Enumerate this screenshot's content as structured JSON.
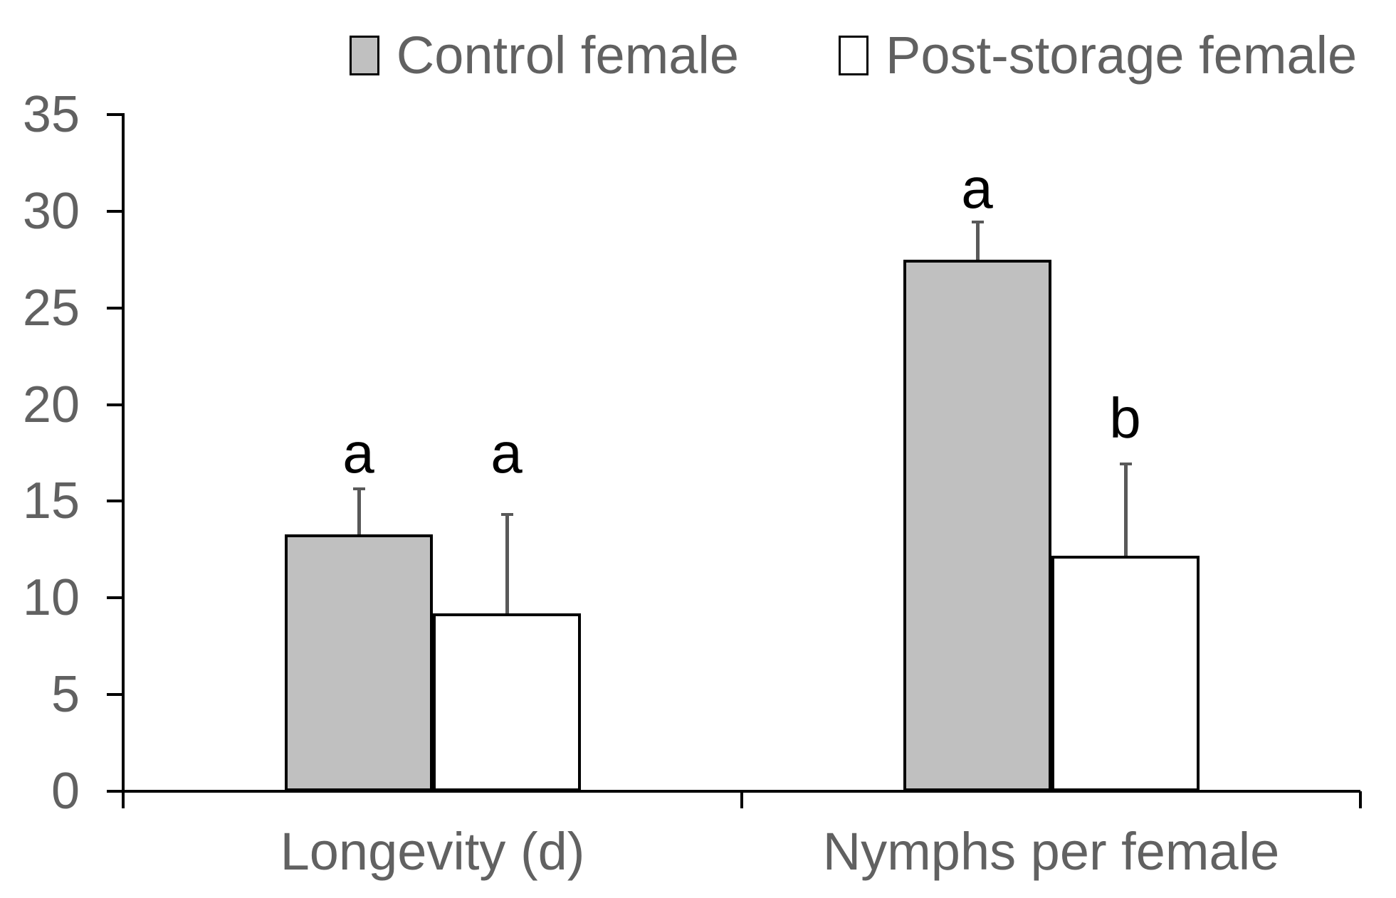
{
  "legend": {
    "items": [
      {
        "label": "Control female",
        "swatch_color": "#c0c0c0"
      },
      {
        "label": "Post-storage female",
        "swatch_color": "#ffffff"
      }
    ]
  },
  "axis": {
    "yticks": [
      "0",
      "5",
      "10",
      "15",
      "20",
      "25",
      "30",
      "35"
    ]
  },
  "colors": {
    "bar_gray_fill": "#c0c0c0",
    "bar_white_fill": "#ffffff",
    "bar_border": "#000000",
    "error_bar": "#595959",
    "axis": "#000000",
    "text_gray": "#616161",
    "significance_letter": "#000000"
  },
  "chart_data": {
    "type": "bar",
    "title": "",
    "xlabel": "",
    "ylabel": "",
    "categories": [
      "Longevity (d)",
      "Nymphs per female"
    ],
    "series": [
      {
        "name": "Control female",
        "fill": "#c0c0c0",
        "values": [
          13.3,
          27.5
        ],
        "error_upper": [
          2.4,
          2.0
        ],
        "sig_letters": [
          "a",
          "a"
        ],
        "letter_heights": [
          16.6,
          30.3
        ]
      },
      {
        "name": "Post-storage female",
        "fill": "#ffffff",
        "values": [
          9.2,
          12.2
        ],
        "error_upper": [
          5.2,
          4.8
        ],
        "sig_letters": [
          "a",
          "b"
        ],
        "letter_heights": [
          16.6,
          18.4
        ]
      }
    ],
    "ylim": [
      0,
      35
    ],
    "ytick_step": 5,
    "grid": false,
    "legend_position": "top",
    "error_bars": "upper-only"
  }
}
